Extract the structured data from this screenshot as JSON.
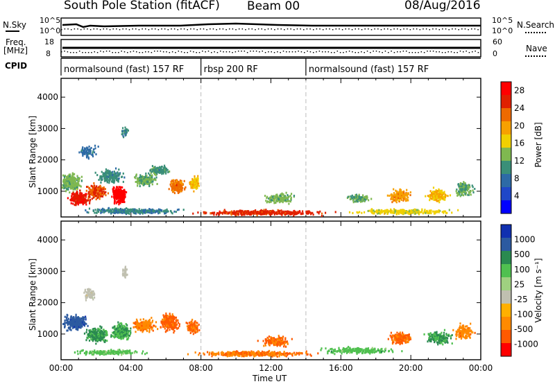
{
  "header": {
    "station": "South Pole Station (fitACF)",
    "beam": "Beam 00",
    "date": "08/Aug/2016"
  },
  "strip": {
    "nsky_label": "N.Sky",
    "nsky_ticks": [
      "10^5",
      "10^0"
    ],
    "nsearch_label": "N.Search",
    "nsearch_ticks": [
      "10^5",
      "10^0"
    ],
    "freq_label": "Freq.",
    "freq_unit": "[MHz]",
    "freq_ticks": [
      "18",
      "8"
    ],
    "nave_label": "Nave",
    "nave_ticks": [
      "60",
      "0"
    ],
    "cpid_label": "CPID",
    "cpid_segments": [
      {
        "label": "normalsound (fast) 157 RF",
        "start": 0,
        "end": 8
      },
      {
        "label": "rbsp 200 RF",
        "start": 8,
        "end": 14
      },
      {
        "label": "normalsound (fast) 157 RF",
        "start": 14,
        "end": 24
      }
    ]
  },
  "colors": {
    "power": [
      "#0000ff",
      "#1f47c8",
      "#2d6aa6",
      "#3a8f78",
      "#7fb850",
      "#f0d000",
      "#f7a000",
      "#ee6a00",
      "#e02000",
      "#ff0000"
    ],
    "velocity": [
      "#ff0000",
      "#ff5a00",
      "#ff8a00",
      "#ffb000",
      "#c0c0b0",
      "#9fd080",
      "#50c050",
      "#2a8a50",
      "#2c5aa0",
      "#1030b0"
    ]
  },
  "chart_data": [
    {
      "type": "heatmap",
      "panel": "power",
      "ylabel": "Slant Range [km]",
      "xlim": [
        0,
        24
      ],
      "ylim": [
        180,
        4600
      ],
      "yticks": [
        1000,
        2000,
        3000,
        4000
      ],
      "colorbar_label": "Power [dB]",
      "colorbar_ticks": [
        "4",
        "8",
        "12",
        "16",
        "20",
        "24",
        "28"
      ],
      "colorbar_range": [
        0,
        30
      ],
      "blobs": [
        {
          "t": 0.5,
          "r": 1300,
          "dt": 0.9,
          "dr": 420,
          "v": 13,
          "n": 90
        },
        {
          "t": 1.0,
          "r": 800,
          "dt": 0.9,
          "dr": 300,
          "v": 27,
          "n": 80
        },
        {
          "t": 2.0,
          "r": 1000,
          "dt": 0.8,
          "dr": 350,
          "v": 24,
          "n": 70
        },
        {
          "t": 3.3,
          "r": 900,
          "dt": 0.6,
          "dr": 450,
          "v": 29,
          "n": 90
        },
        {
          "t": 2.8,
          "r": 1500,
          "dt": 1.0,
          "dr": 300,
          "v": 10,
          "n": 70
        },
        {
          "t": 4.8,
          "r": 1400,
          "dt": 1.0,
          "dr": 300,
          "v": 12,
          "n": 70
        },
        {
          "t": 5.6,
          "r": 1700,
          "dt": 0.8,
          "dr": 200,
          "v": 11,
          "n": 50
        },
        {
          "t": 6.6,
          "r": 1200,
          "dt": 0.6,
          "dr": 350,
          "v": 22,
          "n": 60
        },
        {
          "t": 7.6,
          "r": 1300,
          "dt": 0.4,
          "dr": 350,
          "v": 18,
          "n": 40
        },
        {
          "t": 1.5,
          "r": 2300,
          "dt": 0.8,
          "dr": 300,
          "v": 8,
          "n": 25
        },
        {
          "t": 3.6,
          "r": 2900,
          "dt": 0.3,
          "dr": 300,
          "v": 10,
          "n": 10
        },
        {
          "t": 12.5,
          "r": 800,
          "dt": 1.2,
          "dr": 250,
          "v": 13,
          "n": 50
        },
        {
          "t": 17.0,
          "r": 800,
          "dt": 1.0,
          "dr": 200,
          "v": 12,
          "n": 30
        },
        {
          "t": 19.3,
          "r": 900,
          "dt": 0.9,
          "dr": 300,
          "v": 20,
          "n": 60
        },
        {
          "t": 21.5,
          "r": 900,
          "dt": 0.9,
          "dr": 300,
          "v": 18,
          "n": 60
        },
        {
          "t": 23.0,
          "r": 1100,
          "dt": 0.8,
          "dr": 350,
          "v": 12,
          "n": 50
        },
        {
          "t": 11.5,
          "r": 350,
          "dt": 5.0,
          "dr": 120,
          "v": 25,
          "n": 140
        },
        {
          "t": 19.5,
          "r": 380,
          "dt": 4.0,
          "dr": 120,
          "v": 16,
          "n": 90
        },
        {
          "t": 4.0,
          "r": 400,
          "dt": 3.8,
          "dr": 120,
          "v": 9,
          "n": 110
        }
      ]
    },
    {
      "type": "heatmap",
      "panel": "velocity",
      "ylabel": "Slant Range [km]",
      "xlabel": "Time UT",
      "xlim": [
        0,
        24
      ],
      "ylim": [
        180,
        4600
      ],
      "yticks": [
        1000,
        2000,
        3000,
        4000
      ],
      "xticks": [
        "00:00",
        "04:00",
        "08:00",
        "12:00",
        "16:00",
        "20:00",
        "00:00"
      ],
      "colorbar_label": "Velocity [m s⁻¹]",
      "colorbar_ticks": [
        "1000",
        "500",
        "100",
        "25",
        "-25",
        "-100",
        "-500",
        "-1000"
      ],
      "colorbar_range": [
        0,
        10
      ],
      "blobs": [
        {
          "t": 0.8,
          "r": 1400,
          "dt": 1.0,
          "dr": 350,
          "v": 8.6,
          "n": 90
        },
        {
          "t": 2.0,
          "r": 1000,
          "dt": 1.0,
          "dr": 350,
          "v": 7.2,
          "n": 90
        },
        {
          "t": 3.4,
          "r": 1100,
          "dt": 0.9,
          "dr": 400,
          "v": 7.0,
          "n": 80
        },
        {
          "t": 4.7,
          "r": 1300,
          "dt": 0.9,
          "dr": 300,
          "v": 2.3,
          "n": 70
        },
        {
          "t": 6.2,
          "r": 1400,
          "dt": 0.8,
          "dr": 400,
          "v": 1.8,
          "n": 80
        },
        {
          "t": 7.5,
          "r": 1250,
          "dt": 0.5,
          "dr": 300,
          "v": 1.9,
          "n": 40
        },
        {
          "t": 1.6,
          "r": 2300,
          "dt": 0.5,
          "dr": 250,
          "v": 4.5,
          "n": 20
        },
        {
          "t": 3.6,
          "r": 3000,
          "dt": 0.3,
          "dr": 300,
          "v": 4.6,
          "n": 10
        },
        {
          "t": 12.3,
          "r": 800,
          "dt": 1.4,
          "dr": 250,
          "v": 1.9,
          "n": 50
        },
        {
          "t": 11.0,
          "r": 400,
          "dt": 5.0,
          "dr": 120,
          "v": 2.1,
          "n": 140
        },
        {
          "t": 17.0,
          "r": 500,
          "dt": 3.0,
          "dr": 150,
          "v": 6.5,
          "n": 70
        },
        {
          "t": 19.4,
          "r": 900,
          "dt": 1.0,
          "dr": 300,
          "v": 1.8,
          "n": 60
        },
        {
          "t": 21.6,
          "r": 900,
          "dt": 1.0,
          "dr": 300,
          "v": 7.1,
          "n": 60
        },
        {
          "t": 23.0,
          "r": 1100,
          "dt": 0.8,
          "dr": 350,
          "v": 2.4,
          "n": 50
        },
        {
          "t": 2.8,
          "r": 450,
          "dt": 3.0,
          "dr": 120,
          "v": 6.3,
          "n": 80
        }
      ]
    }
  ]
}
